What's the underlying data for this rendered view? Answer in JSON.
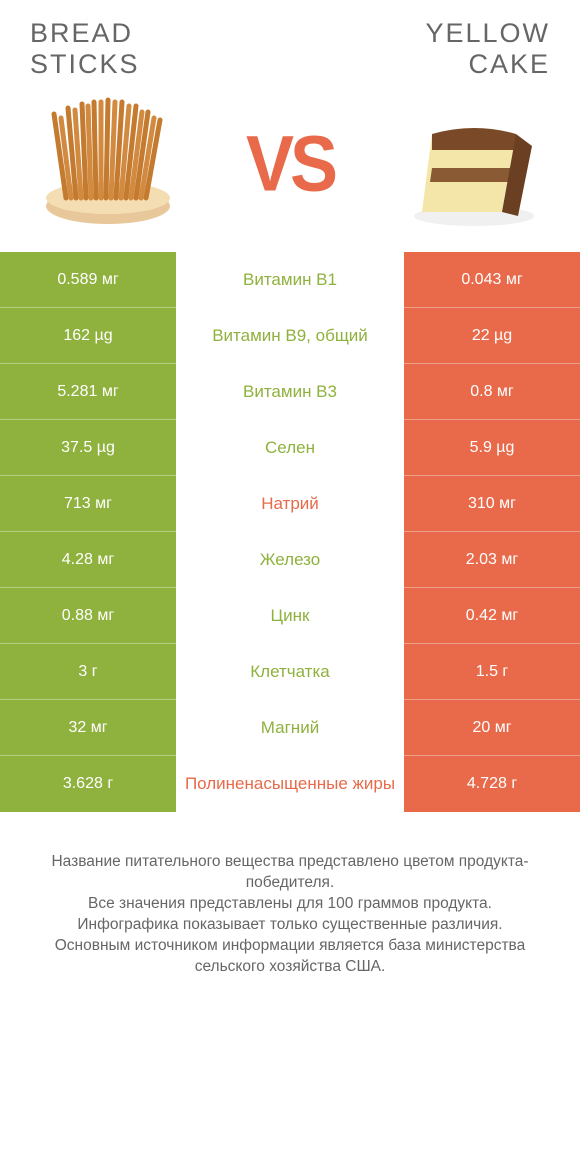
{
  "colors": {
    "left_bg": "#8fb13d",
    "right_bg": "#e86a4a",
    "left_text": "#8fb13d",
    "right_text": "#e86a4a",
    "title_text": "#666666",
    "footer_text": "#666666"
  },
  "header": {
    "left_title_l1": "Bread",
    "left_title_l2": "sticks",
    "right_title_l1": "Yellow",
    "right_title_l2": "cake",
    "vs_label": "VS"
  },
  "rows": [
    {
      "left": "0.589 мг",
      "label": "Витамин B1",
      "right": "0.043 мг",
      "winner": "left"
    },
    {
      "left": "162 µg",
      "label": "Витамин B9, общий",
      "right": "22 µg",
      "winner": "left"
    },
    {
      "left": "5.281 мг",
      "label": "Витамин B3",
      "right": "0.8 мг",
      "winner": "left"
    },
    {
      "left": "37.5 µg",
      "label": "Селен",
      "right": "5.9 µg",
      "winner": "left"
    },
    {
      "left": "713 мг",
      "label": "Натрий",
      "right": "310 мг",
      "winner": "right"
    },
    {
      "left": "4.28 мг",
      "label": "Железо",
      "right": "2.03 мг",
      "winner": "left"
    },
    {
      "left": "0.88 мг",
      "label": "Цинк",
      "right": "0.42 мг",
      "winner": "left"
    },
    {
      "left": "3 г",
      "label": "Клетчатка",
      "right": "1.5 г",
      "winner": "left"
    },
    {
      "left": "32 мг",
      "label": "Магний",
      "right": "20 мг",
      "winner": "left"
    },
    {
      "left": "3.628 г",
      "label": "Полиненасыщенные жиры",
      "right": "4.728 г",
      "winner": "right"
    }
  ],
  "footer": {
    "l1": "Название питательного вещества представлено цветом продукта-победителя.",
    "l2": "Все значения представлены для 100 граммов продукта.",
    "l3": "Инфографика показывает только существенные различия.",
    "l4": "Основным источником информации является база министерства сельского хозяйства США."
  }
}
